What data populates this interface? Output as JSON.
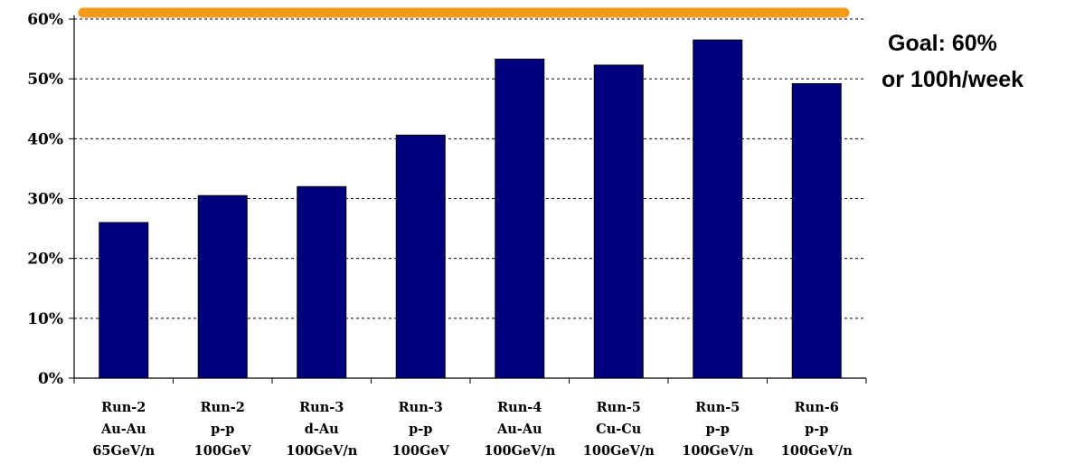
{
  "chart_data": {
    "type": "bar",
    "categories": [
      [
        "Run-2",
        "Au-Au",
        "65GeV/n"
      ],
      [
        "Run-2",
        "p-p",
        "100GeV"
      ],
      [
        "Run-3",
        "d-Au",
        "100GeV/n"
      ],
      [
        "Run-3",
        "p-p",
        "100GeV"
      ],
      [
        "Run-4",
        "Au-Au",
        "100GeV/n"
      ],
      [
        "Run-5",
        "Cu-Cu",
        "100GeV/n"
      ],
      [
        "Run-5",
        "p-p",
        "100GeV/n"
      ],
      [
        "Run-6",
        "p-p",
        "100GeV/n"
      ]
    ],
    "values": [
      26,
      30.5,
      32,
      40.6,
      53.3,
      52.3,
      56.5,
      49.2
    ],
    "ylim": [
      0,
      60
    ],
    "yticks": [
      0,
      10,
      20,
      30,
      40,
      50,
      60
    ],
    "ytick_labels": [
      "0%",
      "10%",
      "20%",
      "30%",
      "40%",
      "50%",
      "60%"
    ],
    "grid": true,
    "bar_color": "#00007f",
    "goal": {
      "value": 60,
      "color": "#f29a1c",
      "label_lines": [
        "Goal: 60%",
        "or 100h/week"
      ]
    }
  }
}
